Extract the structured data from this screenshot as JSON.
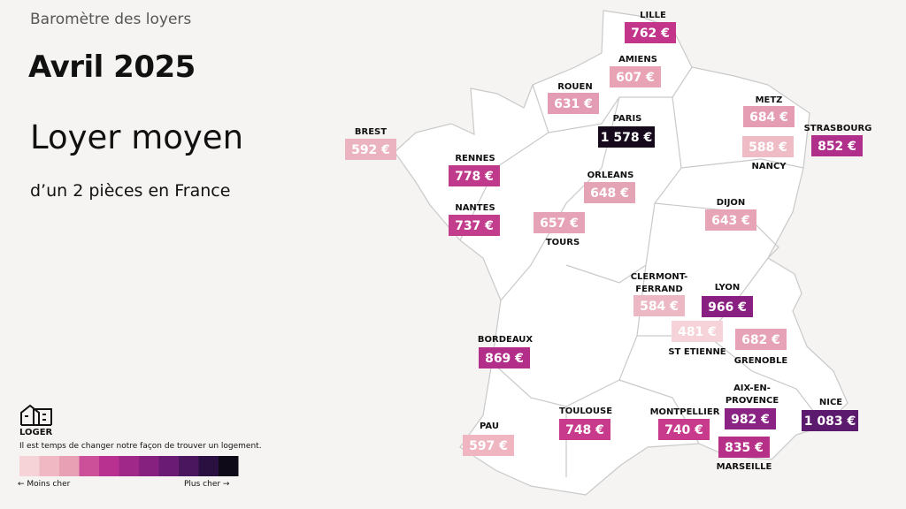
{
  "header": {
    "kicker": "Baromètre des loyers",
    "title": "Avril 2025",
    "heading": "Loyer moyen",
    "subheading": "d’un 2 pièces en France"
  },
  "cities": [
    {
      "name": [
        "LILLE"
      ],
      "price": "762 €",
      "color": "#c2358a"
    },
    {
      "name": [
        "AMIENS"
      ],
      "price": "607 €",
      "color": "#e8a3b5"
    },
    {
      "name": [
        "ROUEN"
      ],
      "price": "631 €",
      "color": "#e39cb3"
    },
    {
      "name": [
        "PARIS"
      ],
      "price": "1 578 €",
      "color": "#16091b"
    },
    {
      "name": [
        "METZ"
      ],
      "price": "684 €",
      "color": "#e59db4"
    },
    {
      "name": [
        "STRASBOURG"
      ],
      "price": "852 €",
      "color": "#b02f8a"
    },
    {
      "name": [
        "NANCY"
      ],
      "price": "588 €",
      "color": "#efbcc6"
    },
    {
      "name": [
        "BREST"
      ],
      "price": "592 €",
      "color": "#ebb2c0"
    },
    {
      "name": [
        "RENNES"
      ],
      "price": "778 €",
      "color": "#c03a8c"
    },
    {
      "name": [
        "ORLEANS"
      ],
      "price": "648 €",
      "color": "#e4a4b6"
    },
    {
      "name": [
        "DIJON"
      ],
      "price": "643 €",
      "color": "#e6a4b6"
    },
    {
      "name": [
        "NANTES"
      ],
      "price": "737 €",
      "color": "#c23e8c"
    },
    {
      "name": [
        "TOURS"
      ],
      "price": "657 €",
      "color": "#e6a2b6"
    },
    {
      "name": [
        "CLERMONT-",
        "FERRAND"
      ],
      "price": "584 €",
      "color": "#ecb8c3"
    },
    {
      "name": [
        "LYON"
      ],
      "price": "966 €",
      "color": "#8a1f82"
    },
    {
      "name": [
        "ST ETIENNE"
      ],
      "price": "481 €",
      "color": "#f5d3d8"
    },
    {
      "name": [
        "GRENOBLE"
      ],
      "price": "682 €",
      "color": "#e6a2b6"
    },
    {
      "name": [
        "BORDEAUX"
      ],
      "price": "869 €",
      "color": "#b22e88"
    },
    {
      "name": [
        "AIX-EN-",
        "PROVENCE"
      ],
      "price": "982 €",
      "color": "#8a2384"
    },
    {
      "name": [
        "NICE"
      ],
      "price": "1 083 €",
      "color": "#5c1a6e"
    },
    {
      "name": [
        "PAU"
      ],
      "price": "597 €",
      "color": "#efb6c2"
    },
    {
      "name": [
        "TOULOUSE"
      ],
      "price": "748 €",
      "color": "#c83a8c"
    },
    {
      "name": [
        "MONTPELLIER"
      ],
      "price": "740 €",
      "color": "#c83a8c"
    },
    {
      "name": [
        "MARSEILLE"
      ],
      "price": "835 €",
      "color": "#b63088"
    }
  ],
  "brand": {
    "name": "LOGER",
    "tagline": "Il est temps de changer notre façon de trouver un logement."
  },
  "legend": {
    "colors": [
      "#f6d3d6",
      "#f0b8c2",
      "#e8a0b5",
      "#cc4f99",
      "#b83190",
      "#a02888",
      "#86217f",
      "#6a1c75",
      "#4a175f",
      "#2a1040",
      "#0f0a17"
    ],
    "low_label": "← Moins cher",
    "high_label": "Plus cher →"
  }
}
